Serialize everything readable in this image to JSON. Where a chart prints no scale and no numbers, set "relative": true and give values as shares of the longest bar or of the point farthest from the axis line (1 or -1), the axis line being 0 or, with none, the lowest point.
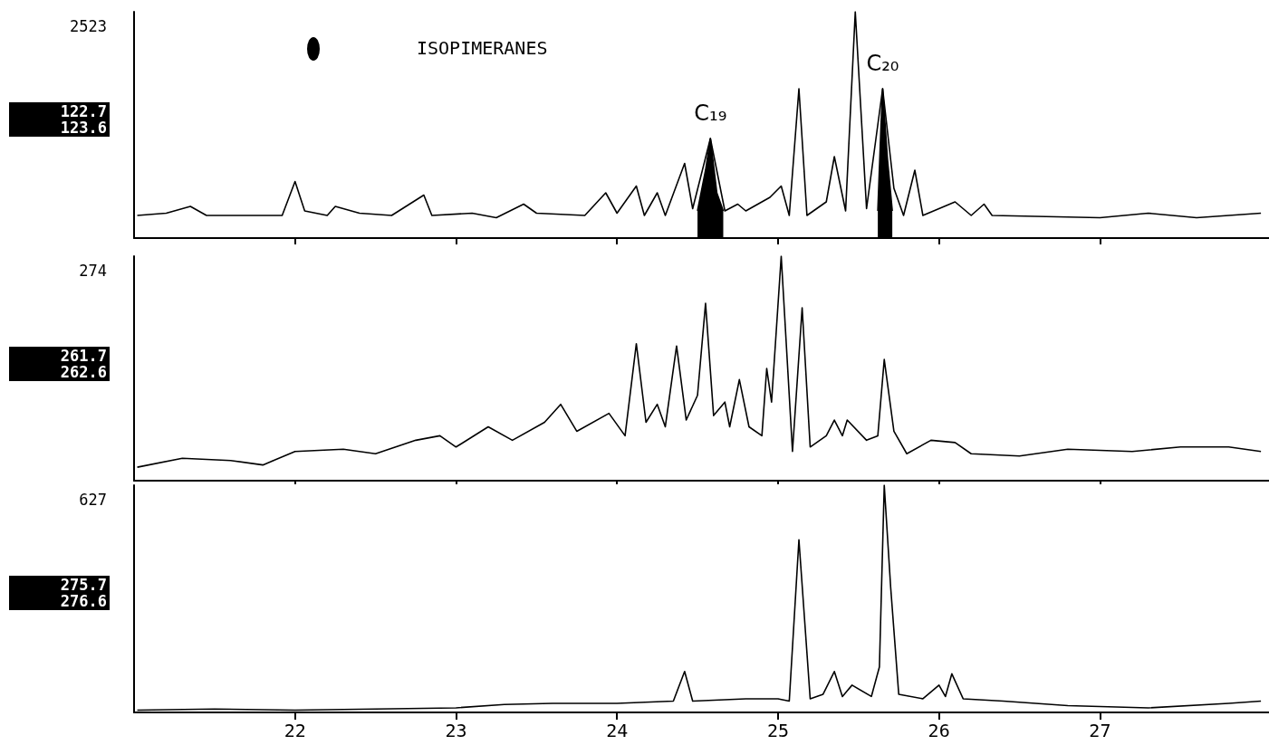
{
  "chart_data": [
    {
      "type": "line",
      "title": "ISOPIMERANES",
      "relative": true,
      "marker": "none",
      "tick_labels": false,
      "xlim": [
        21.0,
        28.05
      ],
      "xticks": [
        22,
        23,
        24,
        25,
        26,
        27
      ],
      "annotations": [
        "2523",
        "122.7",
        "123.6",
        {
          "text": "C₁₉",
          "x": 24.58,
          "y": 0.44
        },
        {
          "text": "C₂₀",
          "x": 25.65,
          "y": 0.66
        }
      ],
      "series": [
        {
          "color": "#000000",
          "x": [
            21.02,
            21.2,
            21.35,
            21.45,
            21.7,
            21.92,
            22.0,
            22.06,
            22.2,
            22.25,
            22.4,
            22.6,
            22.8,
            22.85,
            23.1,
            23.25,
            23.42,
            23.5,
            23.8,
            23.93,
            24.0,
            24.12,
            24.17,
            24.25,
            24.3,
            24.42,
            24.47,
            24.58,
            24.67,
            24.75,
            24.8,
            24.95,
            25.02,
            25.07,
            25.13,
            25.18,
            25.3,
            25.35,
            25.42,
            25.48,
            25.55,
            25.65,
            25.72,
            25.78,
            25.85,
            25.9,
            26.1,
            26.2,
            26.28,
            26.33,
            27.0,
            27.3,
            27.6,
            28.0
          ],
          "values": [
            0.1,
            0.11,
            0.14,
            0.1,
            0.1,
            0.1,
            0.25,
            0.12,
            0.1,
            0.14,
            0.11,
            0.1,
            0.19,
            0.1,
            0.11,
            0.09,
            0.15,
            0.11,
            0.1,
            0.2,
            0.11,
            0.23,
            0.1,
            0.2,
            0.1,
            0.33,
            0.13,
            0.44,
            0.12,
            0.15,
            0.12,
            0.18,
            0.23,
            0.1,
            0.66,
            0.1,
            0.16,
            0.36,
            0.12,
            1.0,
            0.13,
            0.66,
            0.22,
            0.1,
            0.3,
            0.1,
            0.16,
            0.1,
            0.15,
            0.1,
            0.09,
            0.11,
            0.09,
            0.11
          ]
        },
        {
          "type": "area",
          "color": "#000000",
          "x": [
            24.5,
            24.55,
            24.58,
            24.62,
            24.66
          ],
          "values": [
            0.12,
            0.3,
            0.44,
            0.2,
            0.12
          ]
        },
        {
          "type": "area",
          "color": "#000000",
          "x": [
            25.62,
            25.64,
            25.65,
            25.68,
            25.71
          ],
          "values": [
            0.12,
            0.5,
            0.66,
            0.35,
            0.12
          ]
        }
      ]
    },
    {
      "type": "line",
      "relative": true,
      "marker": "none",
      "tick_labels": false,
      "xlim": [
        21.0,
        28.05
      ],
      "xticks": [
        22,
        23,
        24,
        25,
        26,
        27
      ],
      "annotations": [
        "274",
        "261.7",
        "262.6"
      ],
      "series": [
        {
          "color": "#000000",
          "x": [
            21.02,
            21.3,
            21.6,
            21.8,
            22.0,
            22.3,
            22.5,
            22.75,
            22.9,
            23.0,
            23.2,
            23.35,
            23.55,
            23.65,
            23.75,
            23.95,
            24.05,
            24.12,
            24.18,
            24.25,
            24.3,
            24.37,
            24.43,
            24.5,
            24.55,
            24.6,
            24.67,
            24.7,
            24.76,
            24.82,
            24.9,
            24.93,
            24.96,
            25.02,
            25.09,
            25.15,
            25.2,
            25.3,
            25.35,
            25.4,
            25.43,
            25.55,
            25.62,
            25.66,
            25.72,
            25.8,
            25.95,
            26.1,
            26.2,
            26.5,
            26.8,
            27.2,
            27.5,
            27.8,
            28.0
          ],
          "values": [
            0.06,
            0.1,
            0.09,
            0.07,
            0.13,
            0.14,
            0.12,
            0.18,
            0.2,
            0.15,
            0.24,
            0.18,
            0.26,
            0.34,
            0.22,
            0.3,
            0.2,
            0.61,
            0.26,
            0.34,
            0.24,
            0.6,
            0.27,
            0.38,
            0.79,
            0.29,
            0.35,
            0.24,
            0.45,
            0.24,
            0.2,
            0.5,
            0.35,
            1.0,
            0.13,
            0.77,
            0.15,
            0.2,
            0.27,
            0.2,
            0.27,
            0.18,
            0.2,
            0.54,
            0.22,
            0.12,
            0.18,
            0.17,
            0.12,
            0.11,
            0.14,
            0.13,
            0.15,
            0.15,
            0.13
          ]
        }
      ]
    },
    {
      "type": "line",
      "relative": true,
      "marker": "none",
      "tick_labels": "x",
      "xlim": [
        21.0,
        28.05
      ],
      "xticks": [
        22,
        23,
        24,
        25,
        26,
        27
      ],
      "annotations": [
        "627",
        "275.7",
        "276.6"
      ],
      "series": [
        {
          "color": "#000000",
          "x": [
            21.02,
            21.5,
            22.0,
            22.5,
            23.0,
            23.3,
            23.6,
            24.0,
            24.35,
            24.42,
            24.47,
            24.8,
            25.0,
            25.07,
            25.13,
            25.2,
            25.28,
            25.35,
            25.4,
            25.46,
            25.58,
            25.63,
            25.66,
            25.7,
            25.75,
            25.9,
            26.0,
            26.04,
            26.08,
            26.15,
            26.4,
            26.8,
            27.3,
            27.8,
            28.0
          ],
          "values": [
            0.01,
            0.015,
            0.01,
            0.015,
            0.02,
            0.035,
            0.04,
            0.04,
            0.05,
            0.18,
            0.05,
            0.06,
            0.06,
            0.05,
            0.76,
            0.06,
            0.08,
            0.18,
            0.07,
            0.12,
            0.07,
            0.2,
            1.0,
            0.55,
            0.08,
            0.06,
            0.12,
            0.07,
            0.17,
            0.06,
            0.05,
            0.03,
            0.02,
            0.04,
            0.05
          ]
        }
      ]
    }
  ]
}
